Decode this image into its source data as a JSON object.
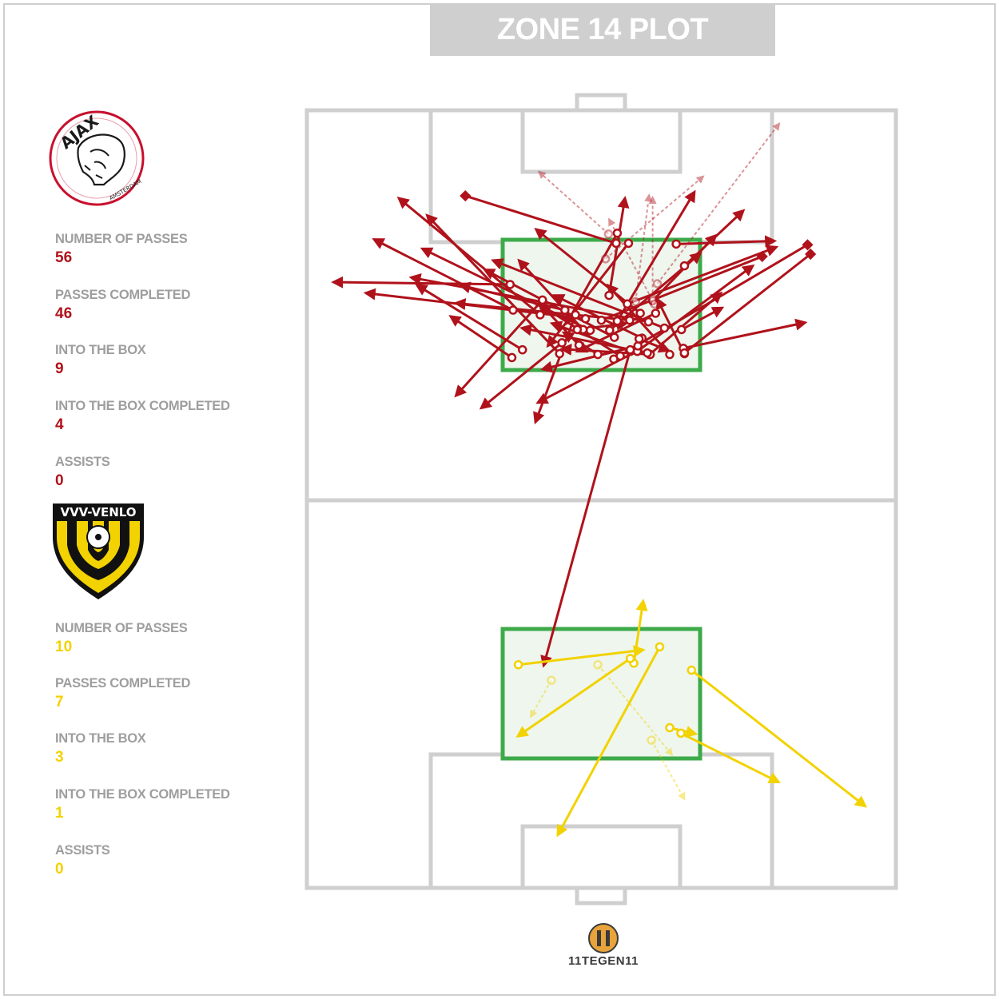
{
  "title": "ZONE 14 PLOT",
  "colors": {
    "home": "#b0121b",
    "away": "#f2d200",
    "zone": "#3daa4a",
    "pitch_line": "#cfcfcf"
  },
  "home": {
    "logo_text": "AJAX",
    "logo_subtext": "AMSTERDAM",
    "stats": [
      {
        "label": "NUMBER OF PASSES",
        "value": "56"
      },
      {
        "label": "PASSES COMPLETED",
        "value": "46"
      },
      {
        "label": "INTO THE BOX",
        "value": "9"
      },
      {
        "label": "INTO THE BOX COMPLETED",
        "value": "4"
      },
      {
        "label": "ASSISTS",
        "value": "0"
      }
    ]
  },
  "away": {
    "logo_text": "VVV-VENLO",
    "stats": [
      {
        "label": "NUMBER OF PASSES",
        "value": "10"
      },
      {
        "label": "PASSES COMPLETED",
        "value": "7"
      },
      {
        "label": "INTO THE BOX",
        "value": "3"
      },
      {
        "label": "INTO THE BOX COMPLETED",
        "value": "1"
      },
      {
        "label": "ASSISTS",
        "value": "0"
      }
    ]
  },
  "brand": "11TEGEN11",
  "chart_data": {
    "type": "scatter",
    "description_units": "pitch coordinates, x 0-100 across width, y 0-100 along length from the top goal line",
    "home_passes": [
      {
        "x": [
          58.0,
          17.7
        ],
        "y": [
          27.2,
          21.5
        ],
        "s": "c"
      },
      {
        "x": [
          43.8,
          26.1
        ],
        "y": [
          25.7,
          22.5
        ],
        "s": "c"
      },
      {
        "x": [
          60.7,
          31.6
        ],
        "y": [
          28.0,
          19.3
        ],
        "s": "c"
      },
      {
        "x": [
          34.5,
          4.5
        ],
        "y": [
          22.4,
          22.1
        ],
        "s": "c"
      },
      {
        "x": [
          35.0,
          11.4
        ],
        "y": [
          25.7,
          16.6
        ],
        "s": "c"
      },
      {
        "x": [
          48.1,
          19.6
        ],
        "y": [
          28.3,
          17.8
        ],
        "s": "c"
      },
      {
        "x": [
          47.3,
          10.0
        ],
        "y": [
          26.8,
          23.5
        ],
        "s": "c"
      },
      {
        "x": [
          43.3,
          29.6
        ],
        "y": [
          29.9,
          38.3
        ],
        "s": "c"
      },
      {
        "x": [
          45.6,
          38.8
        ],
        "y": [
          26.3,
          40.1
        ],
        "s": "c"
      },
      {
        "x": [
          40.0,
          25.3
        ],
        "y": [
          24.4,
          36.7
        ],
        "s": "c"
      },
      {
        "x": [
          56.2,
          39.2
        ],
        "y": [
          30.9,
          37.6
        ],
        "s": "c"
      },
      {
        "x": [
          51.3,
          54.0
        ],
        "y": [
          23.8,
          11.3
        ],
        "s": "c"
      },
      {
        "x": [
          58.7,
          69.4
        ],
        "y": [
          24.5,
          16.1
        ],
        "s": "c"
      },
      {
        "x": [
          63.9,
          84.6
        ],
        "y": [
          30.6,
          27.3
        ],
        "s": "c"
      },
      {
        "x": [
          52.7,
          44.1
        ],
        "y": [
          15.8,
          27.4
        ],
        "s": "c"
      },
      {
        "x": [
          62.7,
          79.4
        ],
        "y": [
          17.2,
          16.8
        ],
        "s": "c"
      },
      {
        "x": [
          56.1,
          75.7
        ],
        "y": [
          31.0,
          20.0
        ],
        "s": "c"
      },
      {
        "x": [
          64.1,
          74.1
        ],
        "y": [
          20.0,
          12.9
        ],
        "s": "c"
      },
      {
        "x": [
          51.4,
          66.8
        ],
        "y": [
          28.3,
          18.4
        ],
        "s": "c"
      },
      {
        "x": [
          58.2,
          70.3
        ],
        "y": [
          31.4,
          23.5
        ],
        "s": "c"
      },
      {
        "x": [
          52.2,
          30.2
        ],
        "y": [
          29.2,
          20.5
        ],
        "s": "c"
      },
      {
        "x": [
          54.4,
          79.7
        ],
        "y": [
          24.9,
          17.6
        ],
        "s": "c"
      },
      {
        "x": [
          36.6,
          18.7
        ],
        "y": [
          30.8,
          22.5
        ],
        "s": "c"
      },
      {
        "x": [
          54.8,
          25.3
        ],
        "y": [
          27.0,
          24.8
        ],
        "s": "c"
      },
      {
        "x": [
          39.6,
          15.6
        ],
        "y": [
          26.3,
          11.3
        ],
        "s": "c"
      },
      {
        "x": [
          58.3,
          43.3
        ],
        "y": [
          31.4,
          30.7
        ],
        "s": "c"
      },
      {
        "x": [
          63.6,
          70.5
        ],
        "y": [
          28.2,
          25.4
        ],
        "s": "c"
      },
      {
        "x": [
          56.9,
          42.0
        ],
        "y": [
          29.3,
          23.8
        ],
        "s": "c"
      },
      {
        "x": [
          49.4,
          43.6
        ],
        "y": [
          31.4,
          28.6
        ],
        "s": "c"
      },
      {
        "x": [
          46.2,
          39.4
        ],
        "y": [
          30.2,
          24.7
        ],
        "s": "c"
      },
      {
        "x": [
          34.8,
          24.4
        ],
        "y": [
          31.8,
          26.5
        ],
        "s": "c"
      },
      {
        "x": [
          42.9,
          20.4
        ],
        "y": [
          31.3,
          13.5
        ],
        "s": "c"
      },
      {
        "x": [
          46.9,
          36.0
        ],
        "y": [
          28.2,
          19.3
        ],
        "s": "c"
      },
      {
        "x": [
          56.2,
          40.0
        ],
        "y": [
          30.3,
          33.3
        ],
        "s": "c"
      },
      {
        "x": [
          52.7,
          65.8
        ],
        "y": [
          27.1,
          10.5
        ],
        "s": "c"
      },
      {
        "x": [
          56.4,
          61.4
        ],
        "y": [
          29.4,
          30.9
        ],
        "s": "c"
      },
      {
        "x": [
          45.9,
          54.2
        ],
        "y": [
          28.2,
          27.4
        ],
        "s": "c"
      },
      {
        "x": [
          57.8,
          36.5
        ],
        "y": [
          31.2,
          28.0
        ],
        "s": "c"
      },
      {
        "x": [
          53.2,
          39.8
        ],
        "y": [
          31.6,
          25.1
        ],
        "s": "c"
      },
      {
        "x": [
          61.6,
          51.1
        ],
        "y": [
          31.4,
          22.5
        ],
        "s": "c"
      },
      {
        "x": [
          54.6,
          40.9
        ],
        "y": [
          17.1,
          30.3
        ],
        "s": "c"
      },
      {
        "x": [
          54.9,
          41.6
        ],
        "y": [
          31.0,
          27.4
        ],
        "s": "c"
      },
      {
        "x": [
          59.2,
          45.9
        ],
        "y": [
          26.1,
          31.0
        ],
        "s": "c"
      },
      {
        "x": [
          64.1,
          59.5
        ],
        "y": [
          31.3,
          24.3
        ],
        "s": "c"
      },
      {
        "x": [
          56.6,
          38.9
        ],
        "y": [
          26.1,
          15.3
        ],
        "s": "c"
      },
      {
        "x": [
          54.9,
          40.2
        ],
        "y": [
          30.8,
          71.4
        ],
        "s": "c"
      },
      {
        "x": [
          52.5,
          26.9
        ],
        "y": [
          17.1,
          11.0
        ],
        "s": "b"
      },
      {
        "x": [
          52.1,
          85.0
        ],
        "y": [
          32.0,
          17.3
        ],
        "s": "b"
      },
      {
        "x": [
          64.1,
          85.5
        ],
        "y": [
          31.2,
          18.5
        ],
        "s": "b"
      },
      {
        "x": [
          50.0,
          77.3
        ],
        "y": [
          27.0,
          18.8
        ],
        "s": "b"
      },
      {
        "x": [
          51.2,
          39.4
        ],
        "y": [
          15.9,
          7.9
        ],
        "s": "f"
      },
      {
        "x": [
          55.8,
          58.1
        ],
        "y": [
          24.6,
          10.9
        ],
        "s": "f"
      },
      {
        "x": [
          59.5,
          80.2
        ],
        "y": [
          22.3,
          1.7
        ],
        "s": "f"
      },
      {
        "x": [
          50.7,
          67.3
        ],
        "y": [
          19.1,
          8.5
        ],
        "s": "f"
      },
      {
        "x": [
          58.7,
          58.7
        ],
        "y": [
          24.2,
          11.2
        ],
        "s": "f"
      },
      {
        "x": [
          59.0,
          51.3
        ],
        "y": [
          24.9,
          14.0
        ],
        "s": "f"
      }
    ],
    "away_passes": [
      {
        "x": [
          35.9,
          57.1
        ],
        "y": [
          71.3,
          69.4
        ],
        "s": "c"
      },
      {
        "x": [
          55.5,
          57.1
        ],
        "y": [
          71.1,
          63.1
        ],
        "s": "c"
      },
      {
        "x": [
          54.9,
          35.8
        ],
        "y": [
          70.5,
          80.5
        ],
        "s": "c"
      },
      {
        "x": [
          65.3,
          94.8
        ],
        "y": [
          72.0,
          89.5
        ],
        "s": "c"
      },
      {
        "x": [
          63.5,
          80.1
        ],
        "y": [
          80.1,
          86.4
        ],
        "s": "c"
      },
      {
        "x": [
          61.6,
          66.0
        ],
        "y": [
          79.4,
          80.2
        ],
        "s": "c"
      },
      {
        "x": [
          59.9,
          42.6
        ],
        "y": [
          69.0,
          93.2
        ],
        "s": "c"
      },
      {
        "x": [
          41.5,
          38.0
        ],
        "y": [
          73.3,
          78.0
        ],
        "s": "f"
      },
      {
        "x": [
          49.4,
          62.0
        ],
        "y": [
          71.3,
          82.9
        ],
        "s": "f"
      },
      {
        "x": [
          58.5,
          64.1
        ],
        "y": [
          81.0,
          88.6
        ],
        "s": "f"
      }
    ]
  }
}
